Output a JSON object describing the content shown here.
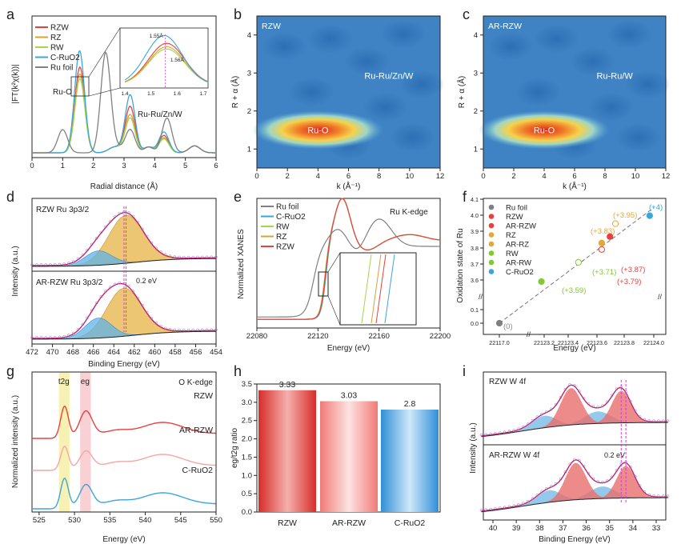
{
  "chart_data": [
    {
      "panel": "a",
      "type": "line",
      "xlabel": "Radial distance (Å)",
      "ylabel": "|FT(k²χ(k))|",
      "xlim": [
        0,
        6
      ],
      "xticks": [
        "0",
        "1",
        "2",
        "3",
        "4",
        "5",
        "6"
      ],
      "legend_position": "top-left",
      "series": [
        {
          "name": "RZW",
          "color": "#e8413d",
          "peaks": [
            [
              1.56,
              0.74
            ],
            [
              3.2,
              0.4
            ],
            [
              4.3,
              0.15
            ]
          ]
        },
        {
          "name": "RZ",
          "color": "#d4a437",
          "peaks": [
            [
              1.56,
              0.68
            ],
            [
              3.2,
              0.33
            ],
            [
              4.3,
              0.13
            ]
          ]
        },
        {
          "name": "RW",
          "color": "#a4d64c",
          "peaks": [
            [
              1.56,
              0.64
            ],
            [
              3.2,
              0.3
            ],
            [
              4.3,
              0.12
            ]
          ]
        },
        {
          "name": "C-RuO2",
          "color": "#3aa6dd",
          "peaks": [
            [
              1.55,
              0.88
            ],
            [
              3.2,
              0.5
            ],
            [
              4.3,
              0.18
            ]
          ]
        },
        {
          "name": "Ru foil",
          "color": "#808080",
          "peaks": [
            [
              1.0,
              0.2
            ],
            [
              2.4,
              0.85
            ],
            [
              3.2,
              0.2
            ],
            [
              4.4,
              0.3
            ]
          ]
        }
      ],
      "annotations": [
        "Ru-O",
        "Ru-Ru/Zn/W"
      ],
      "inset": {
        "xticks": [
          "1.4",
          "1.5",
          "1.6",
          "1.7"
        ],
        "labels": [
          "1.55Å",
          "1.56Å"
        ]
      }
    },
    {
      "panel": "b",
      "type": "heatmap",
      "title": "RZW",
      "xlabel": "k (Å⁻¹)",
      "ylabel": "R + α (Å)",
      "xlim": [
        0,
        12
      ],
      "ylim": [
        0.5,
        4.5
      ],
      "xticks": [
        "0",
        "2",
        "4",
        "6",
        "8",
        "10",
        "12"
      ],
      "yticks": [
        "1",
        "2",
        "3",
        "4"
      ],
      "hotspot": {
        "k": 4,
        "R": 1.5
      },
      "labels": [
        "Ru-O",
        "Ru-Ru/Zn/W"
      ]
    },
    {
      "panel": "c",
      "type": "heatmap",
      "title": "AR-RZW",
      "xlabel": "k (Å⁻¹)",
      "ylabel": "R + α (Å)",
      "xlim": [
        0,
        12
      ],
      "ylim": [
        0.5,
        4.5
      ],
      "xticks": [
        "0",
        "2",
        "4",
        "6",
        "8",
        "10",
        "12"
      ],
      "yticks": [
        "1",
        "2",
        "3",
        "4"
      ],
      "hotspot": {
        "k": 4,
        "R": 1.5
      },
      "labels": [
        "Ru-O",
        "Ru-Ru/W"
      ]
    },
    {
      "panel": "d",
      "type": "line",
      "xlabel": "Binding Energy (eV)",
      "ylabel": "Intensity (a.u.)",
      "xlim": [
        472,
        454
      ],
      "xticks": [
        "472",
        "470",
        "468",
        "466",
        "464",
        "462",
        "460",
        "458",
        "456",
        "454"
      ],
      "subpanels": [
        {
          "label": "RZW  Ru 3p3/2",
          "peak": 462.8
        },
        {
          "label": "AR-RZW  Ru 3p3/2",
          "peak": 463.0
        }
      ],
      "annotations": [
        "0.2 eV"
      ]
    },
    {
      "panel": "e",
      "type": "line",
      "xlabel": "Energy (eV)",
      "ylabel": "Normalized XANES",
      "xlim": [
        22080,
        22200
      ],
      "xticks": [
        "22080",
        "22120",
        "22160",
        "22200"
      ],
      "series": [
        {
          "name": "Ru foil",
          "color": "#808080"
        },
        {
          "name": "C-RuO2",
          "color": "#3aa6dd"
        },
        {
          "name": "RW",
          "color": "#a4d64c"
        },
        {
          "name": "RZ",
          "color": "#d4a437"
        },
        {
          "name": "RZW",
          "color": "#e8413d"
        }
      ],
      "annotations": [
        "Ru K-edge"
      ]
    },
    {
      "panel": "f",
      "type": "scatter",
      "xlabel": "Energy (eV)",
      "ylabel": "Oxidation state of Ru",
      "xticks": [
        "22117.0",
        "22123.2",
        "22123.4",
        "22123.6",
        "22123.8",
        "22124.0"
      ],
      "yticks": [
        "0.0",
        "0.1",
        "3.6",
        "3.7",
        "3.8",
        "3.9",
        "4.0",
        "4.1"
      ],
      "points": [
        {
          "name": "Ru foil",
          "x": 22117.0,
          "y": 0,
          "label": "(0)",
          "color": "#808080"
        },
        {
          "name": "RZW",
          "x": 22123.68,
          "y": 3.87,
          "label": "(+3.87)",
          "color": "#e8413d"
        },
        {
          "name": "AR-RZW",
          "x": 22123.62,
          "y": 3.79,
          "label": "(+3.79)",
          "color": "#e8413d"
        },
        {
          "name": "RZ",
          "x": 22123.62,
          "y": 3.83,
          "label": "(+3.83)",
          "color": "#e5a63a"
        },
        {
          "name": "AR-RZ",
          "x": 22123.72,
          "y": 3.95,
          "label": "(+3.95)",
          "color": "#e5a63a"
        },
        {
          "name": "RW",
          "x": 22123.18,
          "y": 3.59,
          "label": "(+3.59)",
          "color": "#7ecb2b"
        },
        {
          "name": "AR-RW",
          "x": 22123.45,
          "y": 3.71,
          "label": "(+3.71)",
          "color": "#7ecb2b"
        },
        {
          "name": "C-RuO2",
          "x": 22123.97,
          "y": 4.0,
          "label": "(+4)",
          "color": "#3aa6dd"
        }
      ]
    },
    {
      "panel": "g",
      "type": "line",
      "xlabel": "Energy (eV)",
      "ylabel": "Normalized intensity (a.u.)",
      "xlim": [
        524,
        550
      ],
      "xticks": [
        "525",
        "530",
        "535",
        "540",
        "545",
        "550"
      ],
      "title": "O K-edge",
      "series": [
        {
          "name": "RZW",
          "color": "#e8413d"
        },
        {
          "name": "AR-RZW",
          "color": "#f4a6a3"
        },
        {
          "name": "C-RuO2",
          "color": "#3aa6dd"
        }
      ],
      "annotations": [
        "t2g",
        "eg"
      ]
    },
    {
      "panel": "h",
      "type": "bar",
      "ylabel": "eg/t2g ratio",
      "ylim": [
        0,
        3.5
      ],
      "yticks": [
        "0.0",
        "0.5",
        "1.0",
        "1.5",
        "2.0",
        "2.5",
        "3.0",
        "3.5"
      ],
      "categories": [
        "RZW",
        "AR-RZW",
        "C-RuO2"
      ],
      "values": [
        3.33,
        3.03,
        2.8
      ],
      "value_labels": [
        "3.33",
        "3.03",
        "2.8"
      ],
      "colors": [
        "#e5403c",
        "#f59a98",
        "#3fa4e3"
      ]
    },
    {
      "panel": "i",
      "type": "line",
      "xlabel": "Binding Energy (eV)",
      "ylabel": "Intensity (a.u.)",
      "xlim": [
        40.5,
        32.5
      ],
      "xticks": [
        "40",
        "39",
        "38",
        "37",
        "36",
        "35",
        "34",
        "33"
      ],
      "subpanels": [
        {
          "label": "RZW  W 4f",
          "peak": 34.5
        },
        {
          "label": "AR-RZW  W 4f",
          "peak": 34.3
        }
      ],
      "annotations": [
        "0.2 eV"
      ]
    }
  ],
  "panel_letters": [
    "a",
    "b",
    "c",
    "d",
    "e",
    "f",
    "g",
    "h",
    "i"
  ]
}
